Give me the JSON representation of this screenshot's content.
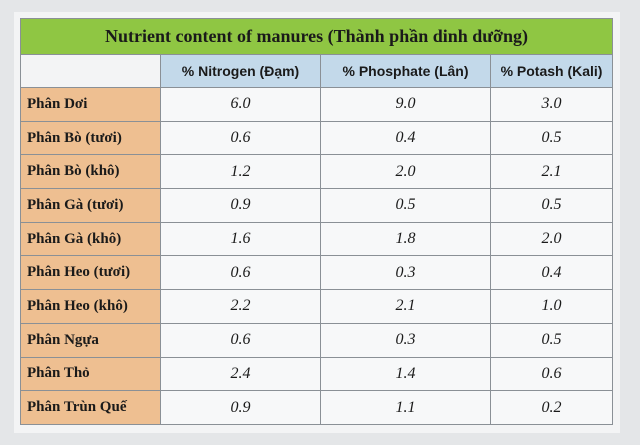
{
  "table": {
    "title": "Nutrient content of manures (Thành phần dinh dưỡng)",
    "header": [
      "",
      "% Nitrogen (Đạm)",
      "% Phosphate (Lân)",
      "% Potash (Kali)"
    ],
    "rows": [
      [
        "Phân Dơi",
        "6.0",
        "9.0",
        "3.0"
      ],
      [
        "Phân Bò (tươi)",
        "0.6",
        "0.4",
        "0.5"
      ],
      [
        "Phân Bò (khô)",
        "1.2",
        "2.0",
        "2.1"
      ],
      [
        "Phân Gà (tươi)",
        "0.9",
        "0.5",
        "0.5"
      ],
      [
        "Phân Gà (khô)",
        "1.6",
        "1.8",
        "2.0"
      ],
      [
        "Phân Heo (tươi)",
        "0.6",
        "0.3",
        "0.4"
      ],
      [
        "Phân Heo (khô)",
        "2.2",
        "2.1",
        "1.0"
      ],
      [
        "Phân Ngựa",
        "0.6",
        "0.3",
        "0.5"
      ],
      [
        "Phân Thỏ",
        "2.4",
        "1.4",
        "0.6"
      ],
      [
        "Phân Trùn Quế",
        "0.9",
        "1.1",
        "0.2"
      ]
    ]
  }
}
